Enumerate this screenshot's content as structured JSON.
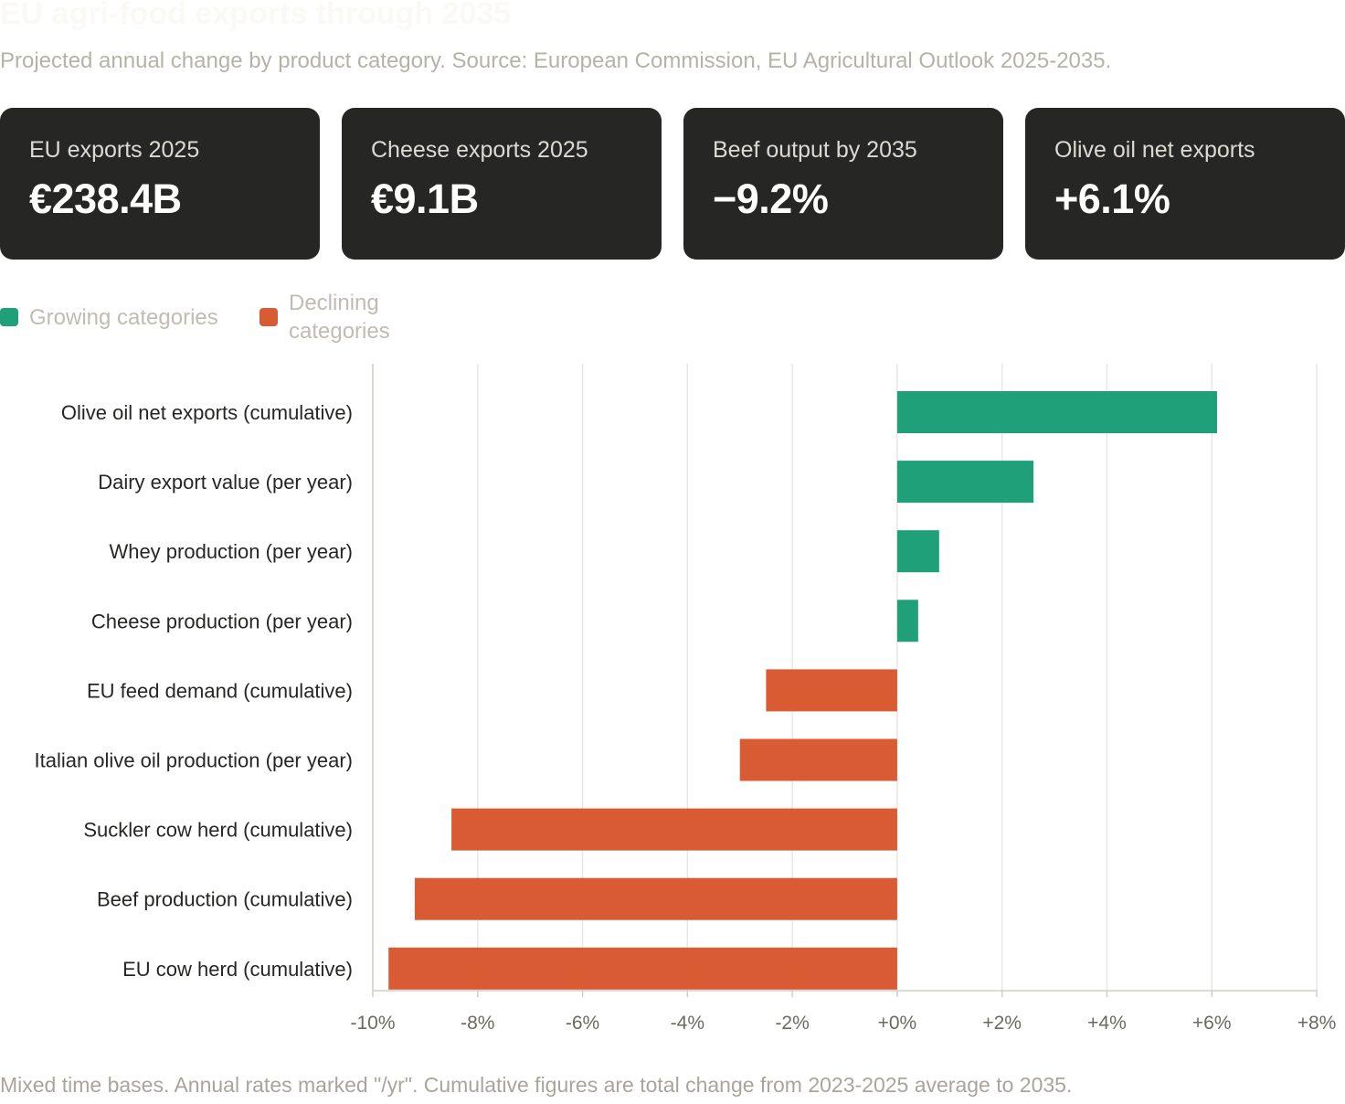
{
  "header": {
    "title": "EU agri-food exports through 2035",
    "subtitle": "Projected annual change by product category. Source: European Commission, EU Agricultural Outlook 2025-2035."
  },
  "kpis": [
    {
      "label": "EU exports 2025",
      "value": "€238.4B"
    },
    {
      "label": "Cheese exports 2025",
      "value": "€9.1B"
    },
    {
      "label": "Beef output by 2035",
      "value": "−9.2%"
    },
    {
      "label": "Olive oil net exports",
      "value": "+6.1%"
    }
  ],
  "legend": {
    "growing": {
      "label": "Growing categories",
      "color": "#1fa078"
    },
    "declining": {
      "label": "Declining categories",
      "color": "#d95b33"
    }
  },
  "chart_data": {
    "type": "bar",
    "orientation": "horizontal",
    "categories": [
      "Olive oil net exports (cumulative)",
      "Dairy export value (per year)",
      "Whey production (per year)",
      "Cheese production (per year)",
      "EU feed demand (cumulative)",
      "Italian olive oil production (per year)",
      "Suckler cow herd (cumulative)",
      "Beef production (cumulative)",
      "EU cow herd (cumulative)"
    ],
    "values": [
      6.1,
      2.6,
      0.8,
      0.4,
      -2.5,
      -3.0,
      -8.5,
      -9.2,
      -9.7
    ],
    "xlim": [
      -10,
      8
    ],
    "xticks": [
      -10,
      -8,
      -6,
      -4,
      -2,
      0,
      2,
      4,
      6,
      8
    ],
    "xtick_labels": [
      "-10%",
      "-8%",
      "-6%",
      "-4%",
      "-2%",
      "+0%",
      "+2%",
      "+4%",
      "+6%",
      "+8%"
    ],
    "grid": true,
    "legend_position": "top-left"
  },
  "footnote": "Mixed time bases. Annual rates marked \"/yr\". Cumulative figures are total change from 2023-2025 average to 2035."
}
